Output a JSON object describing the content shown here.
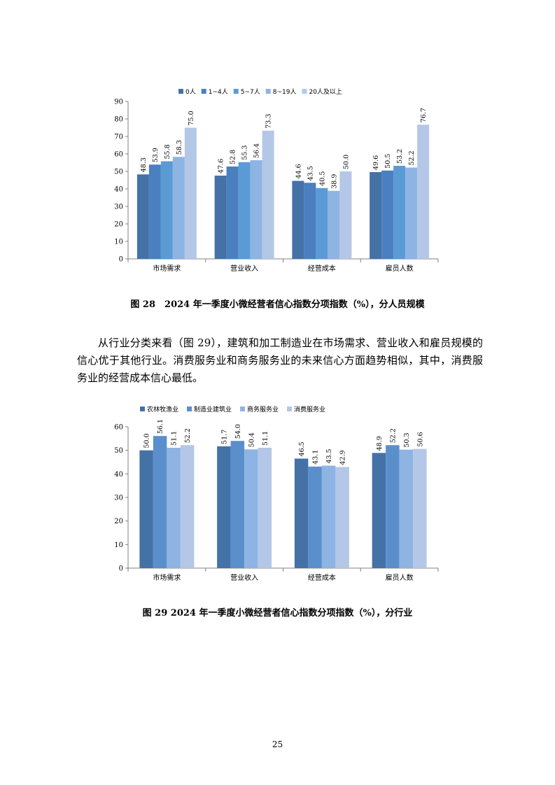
{
  "figure1": {
    "caption": "图 28　2024 年一季度小微经营者信心指数分项指数（%），分人员规模"
  },
  "paragraph": "从行业分类来看（图 29），建筑和加工制造业在市场需求、营业收入和雇员规模的信心优于其他行业。消费服务业和商务服务业的未来信心方面趋势相似，其中，消费服务业的经营成本信心最低。",
  "figure2": {
    "caption": "图 29 2024 年一季度小微经营者信心指数分项指数（%），分行业"
  },
  "page_number": "25",
  "chart_data": [
    {
      "type": "bar",
      "categories": [
        "市场需求",
        "营业收入",
        "经营成本",
        "雇员人数"
      ],
      "series": [
        {
          "name": "0人",
          "values": [
            48.3,
            47.6,
            44.6,
            49.6
          ],
          "color": "#4472a6"
        },
        {
          "name": "1~4人",
          "values": [
            53.9,
            52.8,
            43.5,
            50.5
          ],
          "color": "#4a7fc0"
        },
        {
          "name": "5~7人",
          "values": [
            55.8,
            55.3,
            40.5,
            53.2
          ],
          "color": "#5b9bd5"
        },
        {
          "name": "8~19人",
          "values": [
            58.3,
            56.4,
            38.9,
            52.2
          ],
          "color": "#8eb4e3"
        },
        {
          "name": "20人及以上",
          "values": [
            75.0,
            73.3,
            50.0,
            76.7
          ],
          "color": "#b4c7e7"
        }
      ],
      "ylim": [
        0,
        90
      ],
      "yticks": [
        0,
        10,
        20,
        30,
        40,
        50,
        60,
        70,
        80,
        90
      ],
      "legend": "top"
    },
    {
      "type": "bar",
      "categories": [
        "市场需求",
        "营业收入",
        "经营成本",
        "雇员人数"
      ],
      "series": [
        {
          "name": "农林牧渔业",
          "values": [
            50.0,
            51.7,
            46.5,
            48.9
          ],
          "color": "#4472a6"
        },
        {
          "name": "制造业建筑业",
          "values": [
            56.1,
            54.0,
            43.1,
            52.2
          ],
          "color": "#5b8fcc"
        },
        {
          "name": "商务服务业",
          "values": [
            51.1,
            50.4,
            43.5,
            50.3
          ],
          "color": "#8eb4e3"
        },
        {
          "name": "消费服务业",
          "values": [
            52.2,
            51.1,
            42.9,
            50.6
          ],
          "color": "#b4c7e7"
        }
      ],
      "ylim": [
        0,
        60
      ],
      "yticks": [
        0,
        10,
        20,
        30,
        40,
        50,
        60
      ],
      "legend": "top"
    }
  ]
}
